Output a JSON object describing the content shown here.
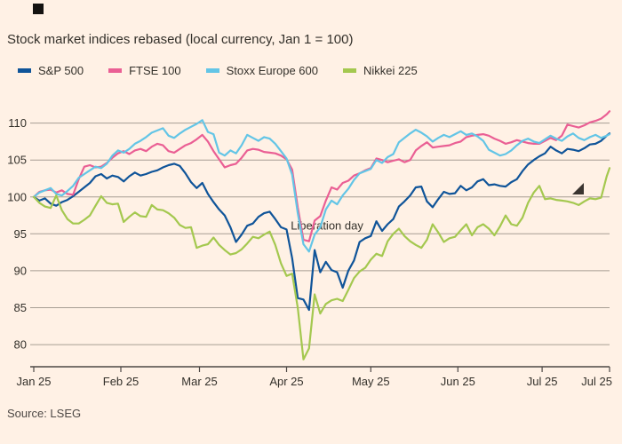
{
  "title": "Stock market indices rebased (local currency, Jan 1 = 100)",
  "source": "Source: LSEG",
  "legend": [
    {
      "label": "S&P 500",
      "color": "#0f5499"
    },
    {
      "label": "FTSE 100",
      "color": "#ea5f94"
    },
    {
      "label": "Stoxx Europe 600",
      "color": "#63c5e6"
    },
    {
      "label": "Nikkei 225",
      "color": "#a4c84f"
    }
  ],
  "chart_data": {
    "type": "line",
    "title": "Stock market indices rebased (local currency, Jan 1 = 100)",
    "xlabel": "",
    "ylabel": "",
    "grid": true,
    "legend_position": "top",
    "sample_step_days": 2,
    "x_axis": {
      "domain_days": [
        0,
        205
      ],
      "ticks_days": [
        0,
        31,
        59,
        90,
        120,
        151,
        181,
        205
      ],
      "tick_labels": [
        "Jan 25",
        "Feb 25",
        "Mar 25",
        "Apr 25",
        "May 25",
        "Jun 25",
        "Jul 25",
        "Jul 25"
      ]
    },
    "y_axis": {
      "ylim": [
        77,
        112
      ],
      "gridlines": [
        80,
        85,
        90,
        95,
        100,
        105,
        110
      ]
    },
    "annotation": {
      "text": "Liberation day",
      "day": 91.5,
      "value": 95.6
    },
    "style": {
      "grid_color": "#a79e93",
      "axis_color": "#4d4845",
      "tick_color": "#33302a",
      "annotation_color": "#33302a",
      "line_width": 2.2
    },
    "series": [
      {
        "name": "S&P 500",
        "color": "#0f5499",
        "values": [
          100,
          99.5,
          99.8,
          99.1,
          98.8,
          99.3,
          99.6,
          100.1,
          100.7,
          101.3,
          101.9,
          102.8,
          103.1,
          102.5,
          102.9,
          102.7,
          102.1,
          102.8,
          103.3,
          102.9,
          103.1,
          103.4,
          103.6,
          104.0,
          104.3,
          104.5,
          104.2,
          103.2,
          102.0,
          101.2,
          101.9,
          100.4,
          99.3,
          98.3,
          97.5,
          95.9,
          93.9,
          94.9,
          96.1,
          96.4,
          97.3,
          97.8,
          98.0,
          97.0,
          95.9,
          95.6,
          91.7,
          86.3,
          86.1,
          84.7,
          92.8,
          89.8,
          91.2,
          90.1,
          89.8,
          87.7,
          90.0,
          91.4,
          93.9,
          94.4,
          94.7,
          96.7,
          95.4,
          96.3,
          97.0,
          98.7,
          99.4,
          100.2,
          101.3,
          101.4,
          99.4,
          98.6,
          99.7,
          100.7,
          100.4,
          100.5,
          101.5,
          100.9,
          101.3,
          102.1,
          102.4,
          101.6,
          101.7,
          101.5,
          101.4,
          102.0,
          102.4,
          103.5,
          104.4,
          105.0,
          105.5,
          105.9,
          106.8,
          106.3,
          105.9,
          106.5,
          106.4,
          106.2,
          106.6,
          107.1,
          107.2,
          107.6,
          108.3,
          108.6
        ]
      },
      {
        "name": "FTSE 100",
        "color": "#ea5f94",
        "values": [
          100,
          100.7,
          100.9,
          101.0,
          100.6,
          100.9,
          100.4,
          100.3,
          102.4,
          104.1,
          104.3,
          104.0,
          104.1,
          104.6,
          105.3,
          105.9,
          106.2,
          105.8,
          106.3,
          106.5,
          106.2,
          106.8,
          107.2,
          107.0,
          106.2,
          106.0,
          106.5,
          107.0,
          107.3,
          107.8,
          108.4,
          107.5,
          106.2,
          105.1,
          104.0,
          104.3,
          104.5,
          105.3,
          106.3,
          106.5,
          106.4,
          106.1,
          106.0,
          105.9,
          105.6,
          105.1,
          103.7,
          98.6,
          94.2,
          94.0,
          96.8,
          97.4,
          99.5,
          101.3,
          101.0,
          101.9,
          102.2,
          102.9,
          103.2,
          103.6,
          103.9,
          105.2,
          105.0,
          104.7,
          104.9,
          105.1,
          104.7,
          105.0,
          106.3,
          106.9,
          107.4,
          106.7,
          106.8,
          106.9,
          107.0,
          107.3,
          107.5,
          108.1,
          108.3,
          108.4,
          108.5,
          108.3,
          107.9,
          107.6,
          107.2,
          107.4,
          107.7,
          107.5,
          107.3,
          107.2,
          107.2,
          107.6,
          108.0,
          107.7,
          108.3,
          109.8,
          109.6,
          109.4,
          109.7,
          110.1,
          110.3,
          110.6,
          111.2,
          111.6
        ]
      },
      {
        "name": "Stoxx Europe 600",
        "color": "#63c5e6",
        "values": [
          100,
          100.6,
          100.9,
          101.2,
          100.4,
          100.2,
          100.8,
          101.5,
          102.6,
          103.1,
          103.6,
          104.1,
          103.9,
          104.5,
          105.6,
          106.3,
          106.0,
          106.5,
          107.2,
          107.6,
          108.1,
          108.7,
          109.0,
          109.3,
          108.3,
          108.0,
          108.6,
          109.1,
          109.5,
          109.9,
          110.4,
          108.8,
          108.5,
          106.0,
          105.6,
          106.3,
          105.9,
          107.0,
          108.4,
          108.0,
          107.6,
          108.1,
          107.9,
          107.2,
          106.2,
          105.2,
          103.0,
          97.8,
          93.6,
          92.6,
          94.9,
          95.9,
          98.3,
          99.5,
          99.0,
          100.2,
          101.1,
          102.3,
          103.2,
          103.5,
          103.8,
          105.0,
          104.6,
          105.4,
          105.8,
          107.4,
          108.0,
          108.6,
          109.1,
          108.7,
          108.2,
          107.5,
          108.0,
          108.4,
          108.1,
          108.5,
          108.9,
          108.4,
          108.6,
          108.2,
          107.6,
          106.4,
          106.0,
          105.6,
          105.8,
          106.3,
          107.0,
          107.6,
          107.9,
          107.5,
          107.3,
          107.8,
          108.3,
          107.9,
          107.6,
          108.2,
          108.6,
          108.0,
          107.7,
          108.1,
          108.4,
          108.0,
          108.3,
          108.5
        ]
      },
      {
        "name": "Nikkei 225",
        "color": "#a4c84f",
        "values": [
          100,
          99.2,
          98.7,
          98.5,
          100.2,
          98.2,
          97.0,
          96.4,
          96.4,
          96.9,
          97.5,
          98.8,
          100.1,
          99.2,
          99.0,
          99.1,
          96.6,
          97.3,
          97.9,
          97.4,
          97.3,
          98.9,
          98.3,
          98.2,
          97.8,
          97.2,
          96.2,
          95.8,
          95.9,
          93.1,
          93.4,
          93.6,
          94.5,
          93.5,
          92.8,
          92.2,
          92.4,
          92.9,
          93.7,
          94.6,
          94.4,
          94.9,
          95.3,
          93.5,
          91.0,
          89.3,
          89.6,
          85.0,
          78.0,
          79.5,
          86.8,
          84.2,
          85.5,
          86.0,
          86.2,
          85.9,
          87.4,
          89.0,
          89.9,
          90.4,
          91.5,
          92.3,
          92.0,
          94.0,
          95.0,
          95.7,
          94.7,
          94.0,
          93.5,
          93.1,
          94.2,
          96.3,
          95.2,
          93.9,
          94.4,
          94.6,
          95.5,
          96.3,
          94.8,
          95.9,
          96.3,
          95.7,
          94.8,
          96.0,
          97.5,
          96.3,
          96.1,
          97.2,
          99.2,
          100.6,
          101.5,
          99.7,
          99.8,
          99.6,
          99.5,
          99.4,
          99.2,
          98.9,
          99.4,
          99.8,
          99.7,
          99.9,
          102.8,
          103.9
        ]
      }
    ]
  }
}
